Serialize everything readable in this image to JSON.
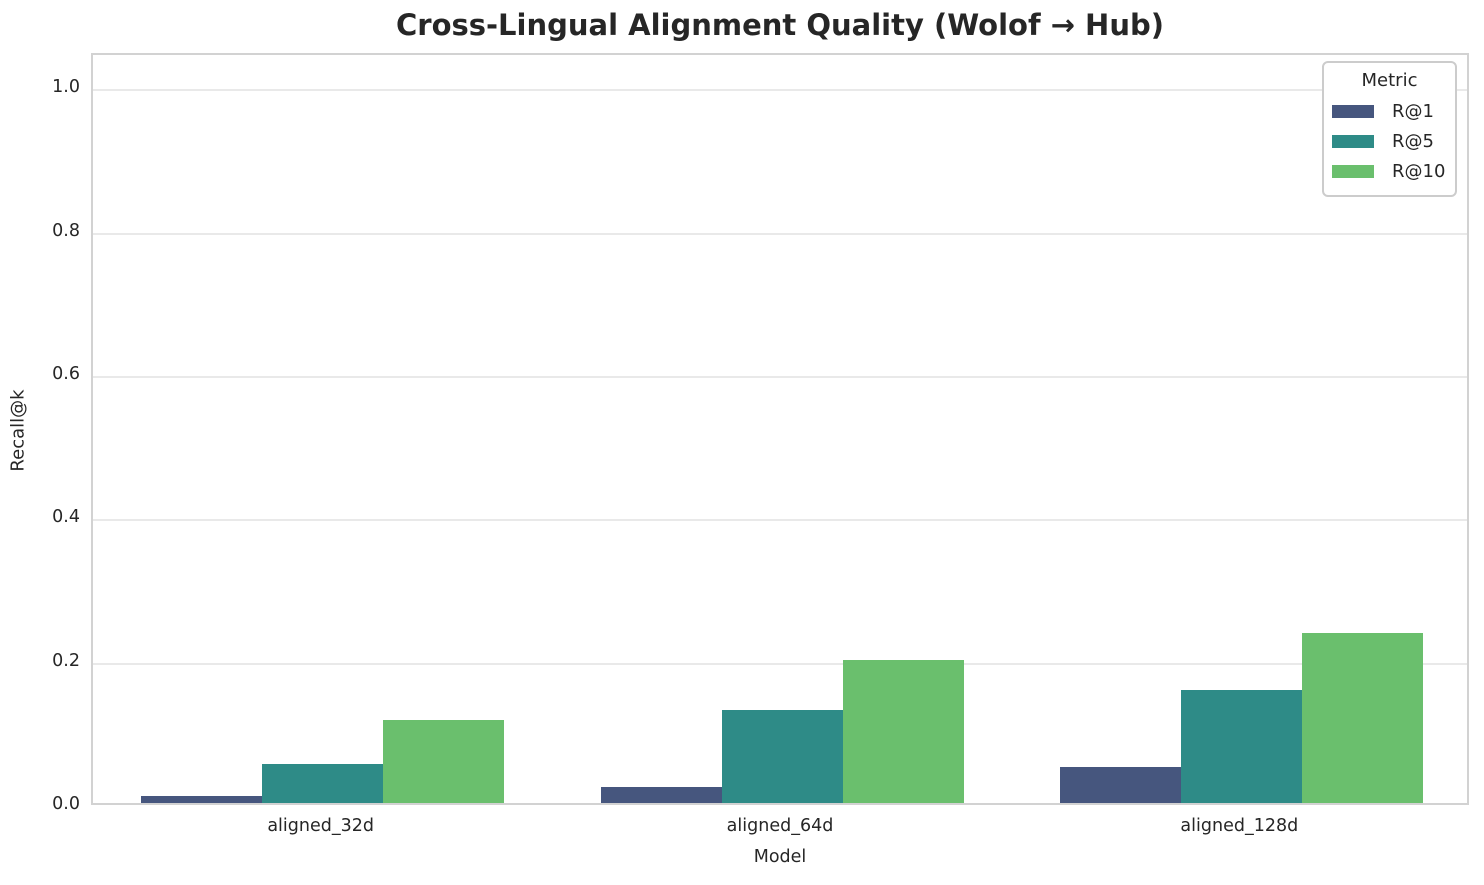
{
  "chart_data": {
    "type": "bar",
    "title": "Cross-Lingual Alignment Quality (Wolof → Hub)",
    "xlabel": "Model",
    "ylabel": "Recall@k",
    "categories": [
      "aligned_32d",
      "aligned_64d",
      "aligned_128d"
    ],
    "series": [
      {
        "name": "R@1",
        "color": "#46567e",
        "values": [
          0.013,
          0.025,
          0.053
        ]
      },
      {
        "name": "R@5",
        "color": "#2e8b87",
        "values": [
          0.057,
          0.133,
          0.161
        ]
      },
      {
        "name": "R@10",
        "color": "#6abf6d",
        "values": [
          0.119,
          0.202,
          0.24
        ]
      }
    ],
    "ylim": [
      0,
      1.049
    ],
    "yticks": [
      "0.0",
      "0.2",
      "0.4",
      "0.6",
      "0.8",
      "1.0"
    ],
    "grid": true,
    "legend": {
      "title": "Metric",
      "position": "upper right"
    }
  },
  "colors": {
    "text": "#262626",
    "gridline": "#e9e9e9",
    "spine": "#d2d2d2",
    "background": "#ffffff"
  }
}
